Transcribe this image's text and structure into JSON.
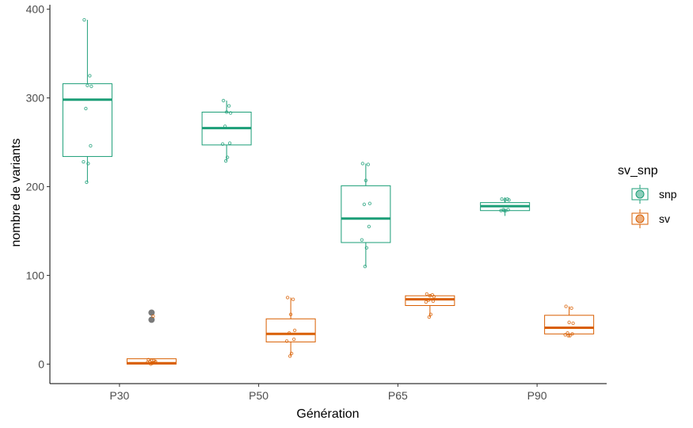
{
  "chart_data": {
    "type": "boxplot",
    "xlabel": "Génération",
    "ylabel": "nombre de variants",
    "categories": [
      "P30",
      "P50",
      "P65",
      "P90"
    ],
    "ylim": [
      -22,
      405
    ],
    "yticks": [
      0,
      100,
      200,
      300,
      400
    ],
    "grid": false,
    "legend": {
      "title": "sv_snp",
      "position": "right"
    },
    "series": [
      {
        "name": "snp",
        "color": "#1b9e77",
        "boxes": [
          {
            "category": "P30",
            "q1": 234,
            "median": 298,
            "q3": 316,
            "whisker_low": 205,
            "whisker_high": 388,
            "points": [
              388,
              325,
              314,
              313,
              288,
              246,
              228,
              226,
              205
            ],
            "outliers": []
          },
          {
            "category": "P50",
            "q1": 247,
            "median": 266,
            "q3": 284,
            "whisker_low": 229,
            "whisker_high": 297,
            "points": [
              297,
              291,
              284,
              283,
              268,
              249,
              248,
              233,
              229
            ],
            "outliers": []
          },
          {
            "category": "P65",
            "q1": 137,
            "median": 164,
            "q3": 201,
            "whisker_low": 110,
            "whisker_high": 226,
            "points": [
              226,
              225,
              207,
              181,
              180,
              155,
              140,
              131,
              110
            ],
            "outliers": []
          },
          {
            "category": "P90",
            "q1": 173,
            "median": 178,
            "q3": 182,
            "whisker_low": 167,
            "whisker_high": 188,
            "points": [
              186,
              186,
              185,
              185,
              174,
              174,
              173,
              173,
              173
            ],
            "outliers": []
          }
        ]
      },
      {
        "name": "sv",
        "color": "#d95f02",
        "boxes": [
          {
            "category": "P30",
            "q1": 0,
            "median": 1,
            "q3": 6,
            "whisker_low": 0,
            "whisker_high": 6,
            "points": [
              5,
              4,
              4,
              3,
              3,
              2,
              2,
              1,
              0,
              54
            ],
            "outliers": [
              58,
              50
            ]
          },
          {
            "category": "P50",
            "q1": 25,
            "median": 34,
            "q3": 51,
            "whisker_low": 9,
            "whisker_high": 75,
            "points": [
              75,
              73,
              56,
              38,
              35,
              28,
              26,
              12,
              9
            ],
            "outliers": []
          },
          {
            "category": "P65",
            "q1": 66,
            "median": 73,
            "q3": 77,
            "whisker_low": 53,
            "whisker_high": 79,
            "points": [
              79,
              78,
              77,
              76,
              72,
              71,
              70,
              56,
              53
            ],
            "outliers": []
          },
          {
            "category": "P90",
            "q1": 34,
            "median": 41,
            "q3": 55,
            "whisker_low": 32,
            "whisker_high": 65,
            "points": [
              65,
              63,
              47,
              46,
              35,
              34,
              33,
              32,
              32
            ],
            "outliers": []
          }
        ]
      }
    ]
  }
}
